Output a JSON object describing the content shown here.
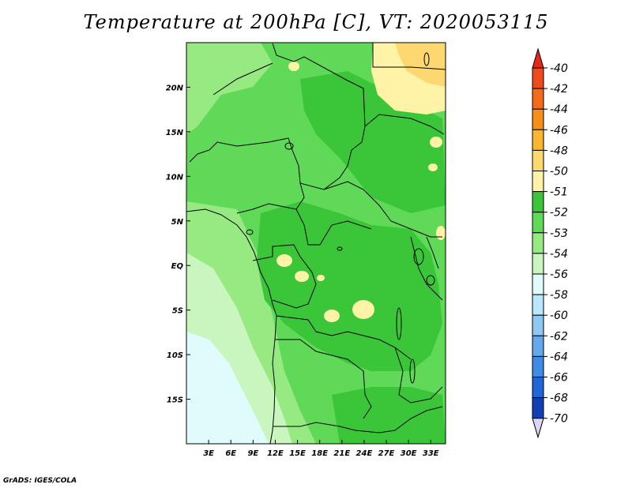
{
  "title": "Temperature at 200hPa [C], VT: 2020053115",
  "credit": "GrADS: IGES/COLA",
  "map": {
    "lon_range": [
      0,
      35
    ],
    "lat_range": [
      -20,
      25
    ],
    "x_ticks": [
      "3E",
      "6E",
      "9E",
      "12E",
      "15E",
      "18E",
      "21E",
      "24E",
      "27E",
      "30E",
      "33E"
    ],
    "x_tick_values": [
      3,
      6,
      9,
      12,
      15,
      18,
      21,
      24,
      27,
      30,
      33
    ],
    "y_ticks": [
      "20N",
      "15N",
      "10N",
      "5N",
      "EQ",
      "5S",
      "10S",
      "15S"
    ],
    "y_tick_values": [
      20,
      15,
      10,
      5,
      0,
      -5,
      -10,
      -15
    ]
  },
  "colorbar": {
    "labels": [
      "-40",
      "-42",
      "-44",
      "-46",
      "-48",
      "-50",
      "-51",
      "-52",
      "-53",
      "-54",
      "-56",
      "-58",
      "-60",
      "-62",
      "-64",
      "-66",
      "-68",
      "-70"
    ],
    "colors": {
      "top_triangle": "#e8261a",
      "bottom_triangle": "#dcd5f5",
      "bins": [
        "#ee4a1c",
        "#f36b18",
        "#f78f17",
        "#fab62c",
        "#fdd870",
        "#fef3a6",
        "#3bc63a",
        "#5fd957",
        "#97e982",
        "#c9f6be",
        "#e0fbfb",
        "#b8e8f9",
        "#8ec8f3",
        "#64a9ec",
        "#3d8de5",
        "#1f66d6",
        "#1140b3",
        "#0a1e80"
      ]
    }
  },
  "field_colors": {
    "lt_minus52": "#5fd957",
    "lt_minus53": "#97e982",
    "lt_minus54": "#c9f6be",
    "lt_minus56": "#e0fbfb",
    "minus51": "#3bc63a",
    "minus50": "#fef3a6",
    "minus48": "#fdd870"
  }
}
